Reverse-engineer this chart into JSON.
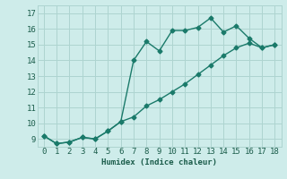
{
  "line1_x": [
    0,
    1,
    2,
    3,
    4,
    5,
    6,
    7,
    8,
    9,
    10,
    11,
    12,
    13,
    14,
    15,
    16,
    17,
    18
  ],
  "line1_y": [
    9.2,
    8.7,
    8.8,
    9.1,
    9.0,
    9.5,
    10.1,
    14.0,
    15.2,
    14.6,
    15.9,
    15.9,
    16.1,
    16.7,
    15.8,
    16.2,
    15.4,
    14.8,
    15.0
  ],
  "line2_x": [
    0,
    1,
    2,
    3,
    4,
    5,
    6,
    7,
    8,
    9,
    10,
    11,
    12,
    13,
    14,
    15,
    16,
    17,
    18
  ],
  "line2_y": [
    9.2,
    8.7,
    8.8,
    9.1,
    9.0,
    9.5,
    10.1,
    10.4,
    11.1,
    11.5,
    12.0,
    12.5,
    13.1,
    13.7,
    14.3,
    14.8,
    15.1,
    14.8,
    15.0
  ],
  "color": "#1a7a6a",
  "bg_color": "#ceecea",
  "grid_color": "#aed4d0",
  "xlabel": "Humidex (Indice chaleur)",
  "ylim": [
    8.5,
    17.5
  ],
  "xlim": [
    -0.5,
    18.5
  ],
  "yticks": [
    9,
    10,
    11,
    12,
    13,
    14,
    15,
    16,
    17
  ],
  "xticks": [
    0,
    1,
    2,
    3,
    4,
    5,
    6,
    7,
    8,
    9,
    10,
    11,
    12,
    13,
    14,
    15,
    16,
    17,
    18
  ],
  "marker": "D",
  "markersize": 2.5,
  "linewidth": 1.0,
  "font_color": "#1a5c4a",
  "font_size": 6.5
}
